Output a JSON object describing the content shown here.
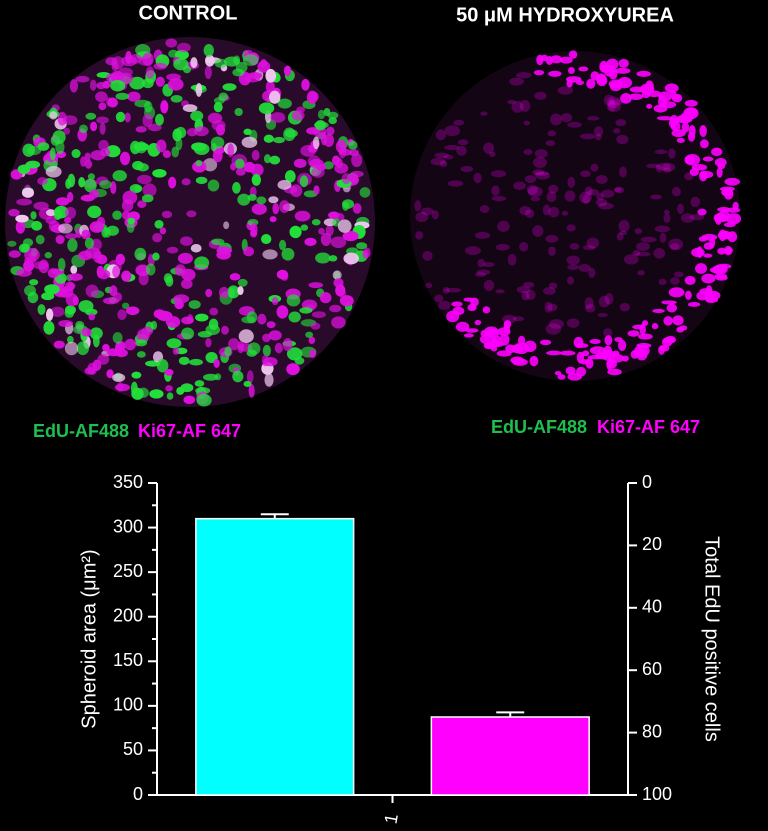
{
  "panels": {
    "left_title": "CONTROL",
    "right_title": "50 μM HYDROXYUREA",
    "left_legend": [
      "EdU-AF488",
      "Ki67-AF 647"
    ],
    "right_legend": [
      "EdU-AF488",
      "Ki67-AF 647"
    ]
  },
  "chart_data": {
    "type": "bar",
    "y_label": "Spheroid area (μm²)",
    "y2_label": "Total EdU positive cells",
    "xlim": [
      0.5,
      1.5
    ],
    "xticks": [
      1
    ],
    "ylim": [
      0,
      350
    ],
    "yticks": [
      0,
      50,
      100,
      150,
      200,
      250,
      300,
      350
    ],
    "y2lim": [
      0,
      100
    ],
    "y2ticks": [
      0,
      20,
      40,
      60,
      80,
      100
    ],
    "y2_inverted": true,
    "series": [
      {
        "color": "#00ffff",
        "x": [
          0.75
        ],
        "values": [
          310
        ],
        "errors": [
          5
        ]
      },
      {
        "color": "#ff00ff",
        "axis": "y2",
        "x": [
          1.25
        ],
        "values": [
          75
        ],
        "errors": [
          1.5
        ]
      }
    ]
  }
}
